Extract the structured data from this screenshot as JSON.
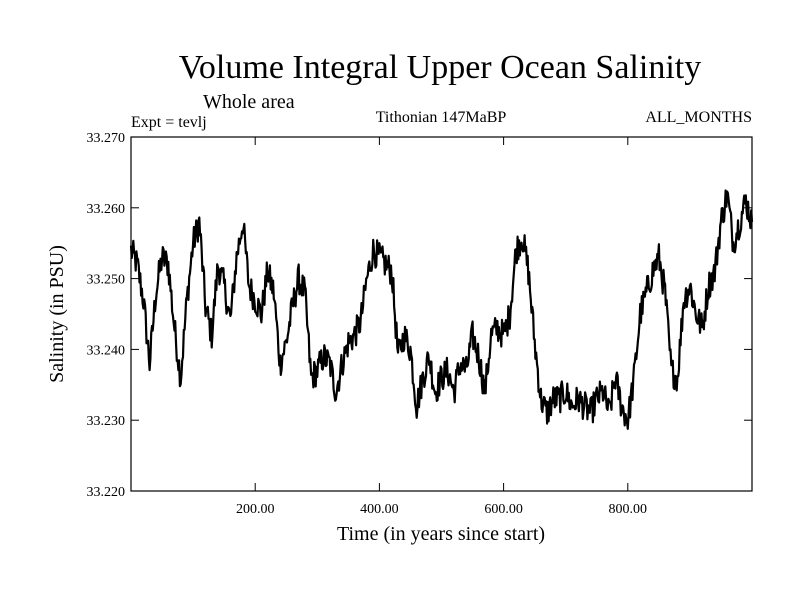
{
  "chart_data": {
    "type": "line",
    "title": "Volume Integral Upper Ocean Salinity",
    "subtitle": "Whole area",
    "experiment": "Expt = tevlj",
    "period": "Tithonian 147MaBP",
    "months": "ALL_MONTHS",
    "xlabel": "Time (in years since start)",
    "ylabel": "Salinity (in PSU)",
    "xlim": [
      0,
      1000
    ],
    "ylim": [
      33.22,
      33.27
    ],
    "xticks": [
      200,
      400,
      600,
      800
    ],
    "xtick_labels": [
      "200.00",
      "400.00",
      "600.00",
      "800.00"
    ],
    "yticks": [
      33.22,
      33.23,
      33.24,
      33.25,
      33.26,
      33.27
    ],
    "ytick_labels": [
      "33.220",
      "33.230",
      "33.240",
      "33.250",
      "33.260",
      "33.270"
    ],
    "series": [
      {
        "name": "salinity",
        "color": "#000000",
        "x": [
          0,
          10,
          20,
          30,
          40,
          50,
          60,
          70,
          80,
          90,
          100,
          110,
          120,
          130,
          140,
          150,
          160,
          170,
          180,
          190,
          200,
          210,
          220,
          230,
          240,
          250,
          260,
          270,
          280,
          290,
          300,
          310,
          320,
          330,
          340,
          350,
          360,
          370,
          380,
          390,
          400,
          410,
          420,
          430,
          440,
          450,
          460,
          470,
          480,
          490,
          500,
          510,
          520,
          530,
          540,
          550,
          560,
          570,
          580,
          590,
          600,
          610,
          620,
          630,
          640,
          650,
          660,
          670,
          680,
          690,
          700,
          710,
          720,
          730,
          740,
          750,
          760,
          770,
          780,
          790,
          800,
          810,
          820,
          830,
          840,
          850,
          860,
          870,
          880,
          890,
          900,
          910,
          920,
          930,
          940,
          950,
          960,
          970,
          980,
          990,
          1000
        ],
        "values": [
          33.254,
          33.252,
          33.247,
          33.238,
          33.248,
          33.253,
          33.252,
          33.243,
          33.236,
          33.247,
          33.255,
          33.258,
          33.246,
          33.242,
          33.252,
          33.249,
          33.244,
          33.253,
          33.258,
          33.249,
          33.247,
          33.245,
          33.251,
          33.248,
          33.238,
          33.241,
          33.246,
          33.25,
          33.248,
          33.236,
          33.237,
          33.239,
          33.238,
          33.234,
          33.238,
          33.241,
          33.242,
          33.244,
          33.25,
          33.254,
          33.253,
          33.252,
          33.251,
          33.239,
          33.242,
          33.24,
          33.232,
          33.236,
          33.239,
          33.234,
          33.236,
          33.237,
          33.234,
          33.238,
          33.237,
          33.242,
          33.239,
          33.234,
          33.242,
          33.243,
          33.242,
          33.245,
          33.254,
          33.256,
          33.251,
          33.241,
          33.233,
          33.231,
          33.233,
          33.233,
          33.234,
          33.232,
          33.233,
          33.232,
          33.231,
          33.233,
          33.234,
          33.231,
          33.236,
          33.232,
          33.23,
          33.236,
          33.245,
          33.248,
          33.251,
          33.253,
          33.248,
          33.237,
          33.236,
          33.247,
          33.249,
          33.245,
          33.243,
          33.249,
          33.251,
          33.258,
          33.262,
          33.255,
          33.258,
          33.261,
          33.258
        ]
      }
    ]
  }
}
